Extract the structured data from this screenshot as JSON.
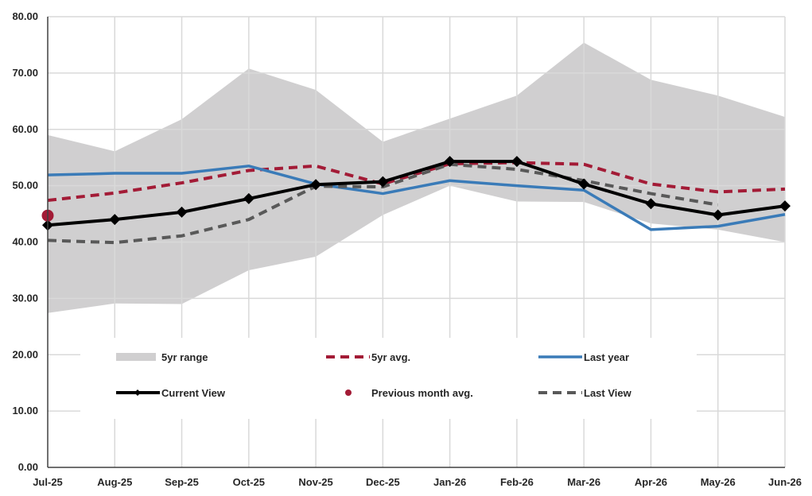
{
  "chart_data": {
    "type": "line",
    "title": "",
    "xlabel": "",
    "ylabel": "",
    "ylim": [
      0,
      80
    ],
    "yticks": [
      "0.00",
      "10.00",
      "20.00",
      "30.00",
      "40.00",
      "50.00",
      "60.00",
      "70.00",
      "80.00"
    ],
    "categories": [
      "Jul-25",
      "Aug-25",
      "Sep-25",
      "Oct-25",
      "Nov-25",
      "Dec-25",
      "Jan-26",
      "Feb-26",
      "Mar-26",
      "Apr-26",
      "May-26",
      "Jun-26"
    ],
    "grid": true,
    "legend_position": "bottom-inside",
    "range": {
      "name": "5yr range",
      "color": "#d0cfd0",
      "low": [
        27.4,
        29.1,
        29.0,
        35.0,
        37.4,
        44.8,
        50.0,
        47.2,
        47.1,
        43.3,
        42.2,
        40.0
      ],
      "high": [
        59.0,
        56.1,
        61.8,
        70.8,
        67.0,
        57.8,
        61.9,
        66.0,
        75.4,
        68.8,
        66.0,
        62.2
      ]
    },
    "series": [
      {
        "name": "5yr avg.",
        "color": "#a31b36",
        "style": "dashed",
        "width": 4,
        "values": [
          47.4,
          48.7,
          50.5,
          52.7,
          53.5,
          50.3,
          53.9,
          54.1,
          53.8,
          50.3,
          48.9,
          49.4
        ]
      },
      {
        "name": "Last year",
        "color": "#3a7bb8",
        "style": "solid",
        "width": 3.5,
        "values": [
          51.9,
          52.2,
          52.2,
          53.5,
          50.3,
          48.6,
          50.9,
          50.0,
          49.2,
          42.2,
          42.8,
          44.9
        ]
      },
      {
        "name": "Last View",
        "color": "#595959",
        "style": "dashed",
        "width": 4,
        "values": [
          40.3,
          39.9,
          41.1,
          44.0,
          49.9,
          49.8,
          53.8,
          52.9,
          50.9,
          48.6,
          46.6,
          null
        ]
      },
      {
        "name": "Current View",
        "color": "#000000",
        "style": "solid",
        "width": 4,
        "markers": "diamond",
        "values": [
          43.0,
          44.0,
          45.3,
          47.7,
          50.2,
          50.7,
          54.3,
          54.3,
          50.3,
          46.8,
          44.8,
          46.4
        ]
      }
    ],
    "point": {
      "name": "Previous month avg.",
      "color": "#a31b36",
      "x": "Jul-25",
      "y": 44.7
    },
    "legend": [
      "5yr range",
      "5yr avg.",
      "Last year",
      "Current View",
      "Previous month avg.",
      "Last View"
    ]
  }
}
